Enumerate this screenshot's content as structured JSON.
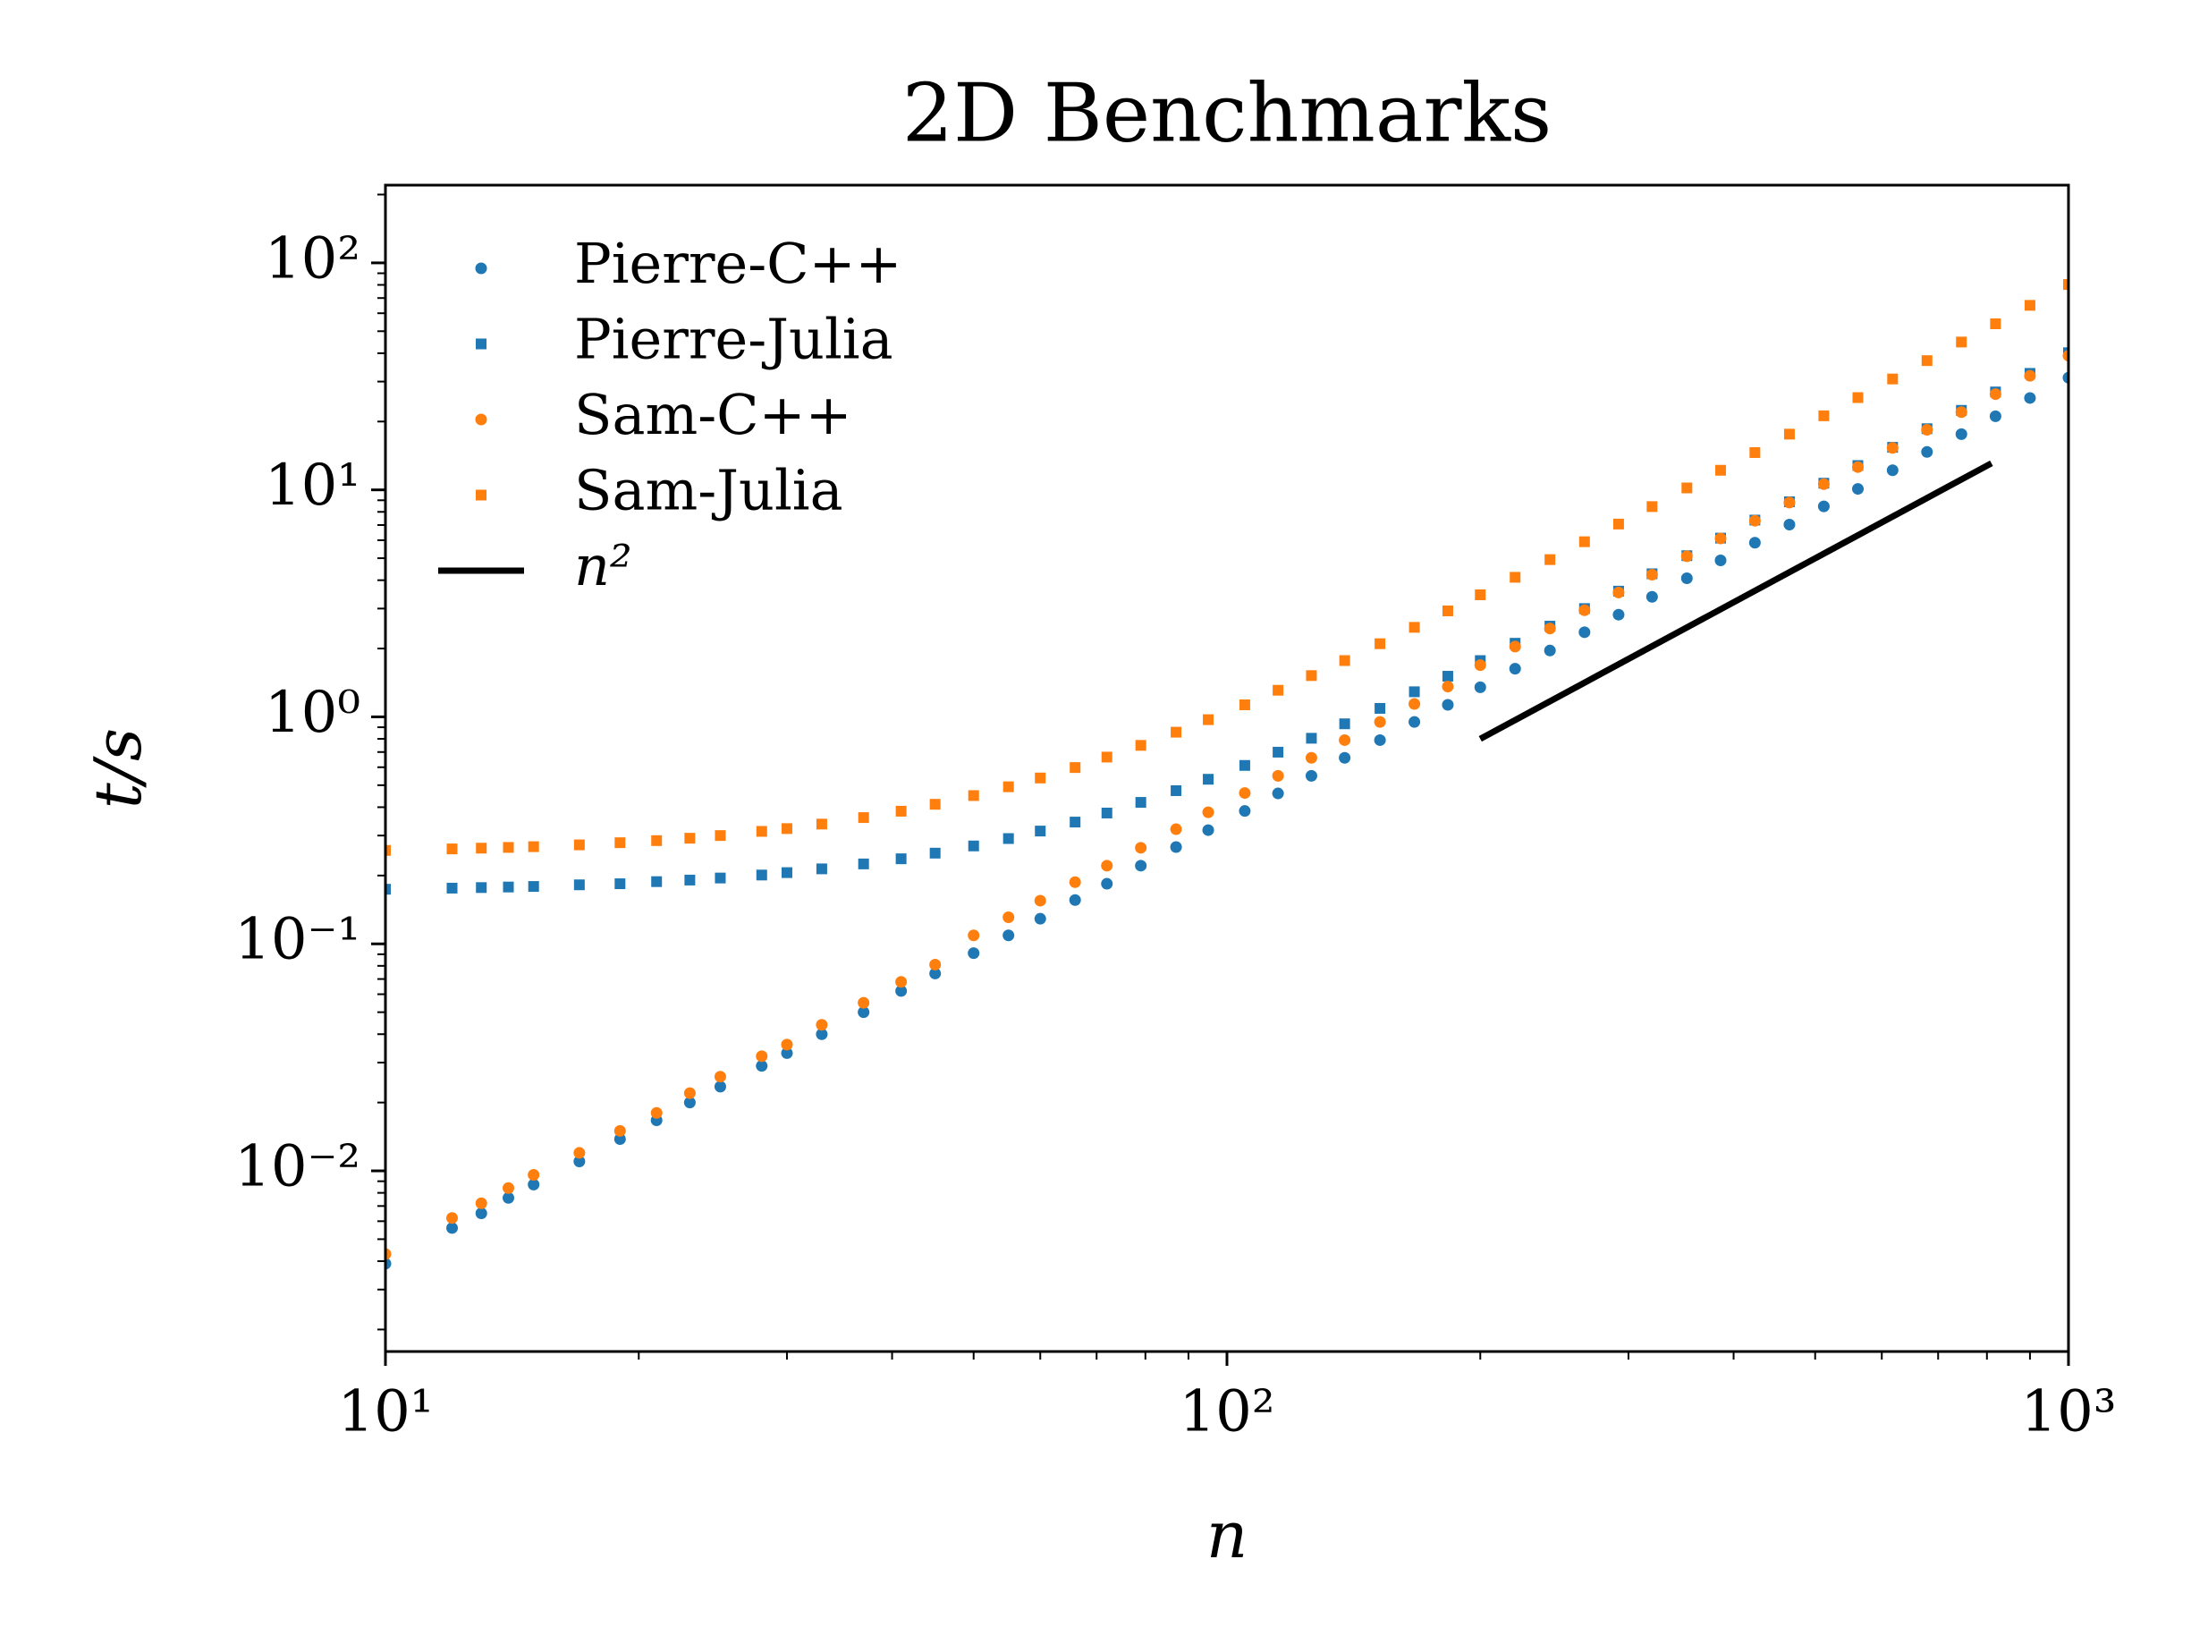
{
  "chart_data": {
    "type": "scatter",
    "title": "2D Benchmarks",
    "x_label": "n",
    "y_label": "t/s",
    "x_scale": "log",
    "y_scale": "log",
    "minor_ticks": true,
    "legend_position": "upper left",
    "xlim": [
      10,
      1000
    ],
    "xticks": [
      {
        "value": 10,
        "label": "10¹"
      },
      {
        "value": 100,
        "label": "10²"
      },
      {
        "value": 1000,
        "label": "10³"
      }
    ],
    "ylim": [
      0.0016,
      220
    ],
    "yticks": [
      {
        "value": 0.01,
        "label": "10⁻²"
      },
      {
        "value": 0.1,
        "label": "10⁻¹"
      },
      {
        "value": 1,
        "label": "10⁰"
      },
      {
        "value": 10,
        "label": "10¹"
      },
      {
        "value": 100,
        "label": "10²"
      }
    ],
    "x": [
      10,
      12,
      13,
      14,
      15,
      17,
      19,
      21,
      23,
      25,
      28,
      30,
      33,
      37,
      41,
      45,
      50,
      55,
      60,
      66,
      72,
      79,
      87,
      95,
      105,
      115,
      126,
      138,
      152,
      167,
      183,
      200,
      220,
      242,
      266,
      292,
      320,
      352,
      386,
      424,
      466,
      512,
      562,
      618,
      679,
      746,
      819,
      900,
      1000
    ],
    "series": [
      {
        "name": "Pierre-C++",
        "marker": "circle",
        "color": "#1f77b4",
        "values": [
          0.0039,
          0.0056,
          0.0065,
          0.0076,
          0.0087,
          0.011,
          0.0138,
          0.0167,
          0.02,
          0.0235,
          0.029,
          0.033,
          0.04,
          0.05,
          0.062,
          0.074,
          0.091,
          0.109,
          0.129,
          0.156,
          0.184,
          0.221,
          0.267,
          0.317,
          0.385,
          0.46,
          0.55,
          0.66,
          0.79,
          0.95,
          1.13,
          1.35,
          1.63,
          1.96,
          2.36,
          2.82,
          3.38,
          4.08,
          4.89,
          5.85,
          7.03,
          8.46,
          10.1,
          12.2,
          14.7,
          17.6,
          21.1,
          25.4,
          31.2
        ]
      },
      {
        "name": "Pierre-Julia",
        "marker": "square",
        "color": "#1f77b4",
        "values": [
          0.174,
          0.176,
          0.177,
          0.178,
          0.179,
          0.182,
          0.184,
          0.188,
          0.191,
          0.195,
          0.201,
          0.206,
          0.214,
          0.225,
          0.237,
          0.251,
          0.27,
          0.291,
          0.314,
          0.344,
          0.377,
          0.42,
          0.473,
          0.531,
          0.611,
          0.699,
          0.805,
          0.932,
          1.09,
          1.29,
          1.51,
          1.77,
          2.11,
          2.51,
          3.0,
          3.58,
          4.27,
          5.13,
          6.13,
          7.36,
          8.86,
          10.7,
          12.8,
          15.4,
          18.6,
          22.4,
          27.0,
          32.6,
          40.2
        ]
      },
      {
        "name": "Sam-C++",
        "marker": "circle",
        "color": "#ff7f0e",
        "values": [
          0.0043,
          0.0062,
          0.0072,
          0.0084,
          0.0096,
          0.012,
          0.015,
          0.018,
          0.022,
          0.026,
          0.032,
          0.036,
          0.044,
          0.055,
          0.068,
          0.081,
          0.109,
          0.131,
          0.155,
          0.187,
          0.221,
          0.265,
          0.32,
          0.38,
          0.462,
          0.55,
          0.66,
          0.79,
          0.95,
          1.14,
          1.36,
          1.69,
          2.04,
          2.45,
          2.95,
          3.53,
          4.23,
          5.1,
          6.11,
          7.31,
          8.79,
          10.6,
          12.6,
          15.3,
          18.4,
          22.0,
          26.4,
          31.8,
          39.0
        ]
      },
      {
        "name": "Sam-Julia",
        "marker": "square",
        "color": "#ff7f0e",
        "values": [
          0.258,
          0.262,
          0.264,
          0.266,
          0.268,
          0.273,
          0.279,
          0.285,
          0.292,
          0.3,
          0.313,
          0.322,
          0.337,
          0.36,
          0.384,
          0.412,
          0.45,
          0.492,
          0.538,
          0.598,
          0.665,
          0.749,
          0.856,
          0.972,
          1.13,
          1.31,
          1.52,
          1.77,
          2.1,
          2.48,
          2.93,
          3.45,
          4.12,
          4.93,
          5.91,
          7.07,
          8.44,
          10.2,
          12.2,
          14.6,
          17.6,
          21.2,
          25.5,
          30.8,
          37.1,
          44.8,
          53.9,
          65.0,
          80.3
        ]
      },
      {
        "name": "n²",
        "marker": "line",
        "color": "#000000",
        "x": [
          200,
          810
        ],
        "values": [
          0.8,
          13.1
        ]
      }
    ]
  }
}
